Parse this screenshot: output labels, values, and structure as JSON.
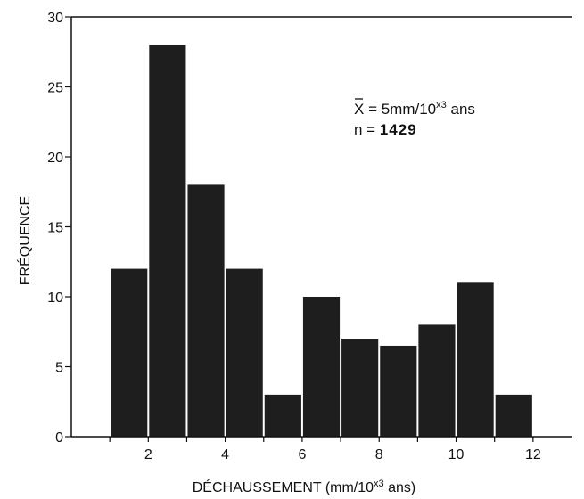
{
  "chart_data": {
    "type": "bar",
    "xlabel": "DÉCHAUSSEMENT (mm/10",
    "xlabel_sup": "x3",
    "xlabel_end": " ans)",
    "ylabel": "FRÉQUENCE",
    "xlim": [
      0,
      13
    ],
    "ylim": [
      0,
      30
    ],
    "x_ticks": [
      2,
      4,
      6,
      8,
      10,
      12
    ],
    "y_ticks": [
      0,
      5,
      10,
      15,
      20,
      25,
      30
    ],
    "bin_width": 1,
    "bins": [
      {
        "x": 1,
        "value": 12
      },
      {
        "x": 2,
        "value": 28
      },
      {
        "x": 3,
        "value": 18
      },
      {
        "x": 4,
        "value": 12
      },
      {
        "x": 5,
        "value": 3
      },
      {
        "x": 6,
        "value": 10
      },
      {
        "x": 7,
        "value": 7
      },
      {
        "x": 8,
        "value": 6.5
      },
      {
        "x": 9,
        "value": 8
      },
      {
        "x": 10,
        "value": 11
      },
      {
        "x": 11,
        "value": 3
      }
    ],
    "annotations": {
      "mean_symbol": "X",
      "mean_value": " = 5mm/10",
      "mean_sup": "x3",
      "mean_unit": " ans",
      "n_label": "n = ",
      "n_value": "1429"
    },
    "grid": false,
    "bar_color": "#1e1e1e"
  }
}
